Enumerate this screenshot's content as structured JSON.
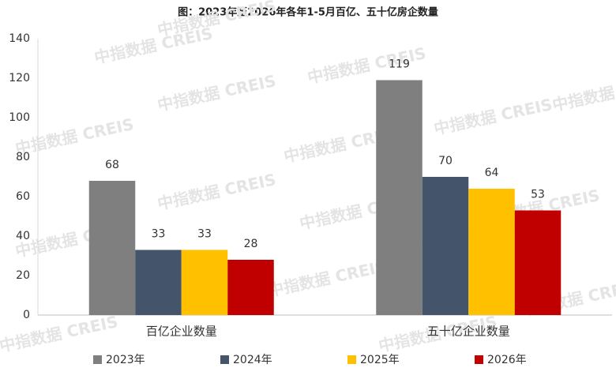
{
  "chart_data": {
    "type": "bar",
    "title": "图：2023年至2026年各年1-5月百亿、五十亿房企数量",
    "watermark": "中指数据 CREIS",
    "categories": [
      "百亿企业数量",
      "五十亿企业数量"
    ],
    "series": [
      {
        "name": "2023年",
        "color": "#7f7f7f",
        "values": [
          68,
          119
        ]
      },
      {
        "name": "2024年",
        "color": "#44546a",
        "values": [
          33,
          70
        ]
      },
      {
        "name": "2025年",
        "color": "#ffc000",
        "values": [
          33,
          64
        ]
      },
      {
        "name": "2026年",
        "color": "#c00000",
        "values": [
          28,
          53
        ]
      }
    ],
    "ylim": [
      0,
      140
    ],
    "yticks": [
      0,
      20,
      40,
      60,
      80,
      100,
      120,
      140
    ],
    "grid": false,
    "legend": "bottom"
  }
}
